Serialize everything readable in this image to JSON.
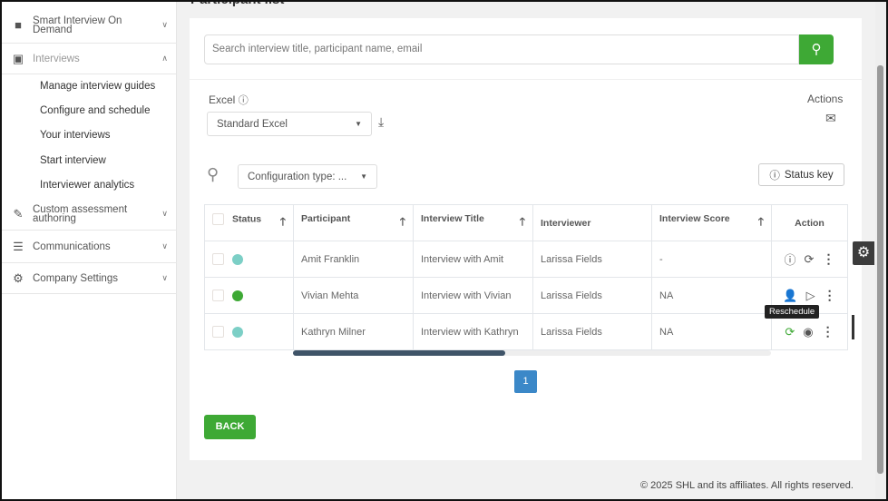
{
  "sidebar": {
    "items": [
      {
        "label": "Smart Interview On Demand",
        "icon": "video-camera-icon"
      },
      {
        "label": "Interviews",
        "icon": "interview-board-icon",
        "expanded": true
      },
      {
        "label": "Custom assessment authoring",
        "icon": "edit-icon"
      },
      {
        "label": "Communications",
        "icon": "list-icon"
      },
      {
        "label": "Company Settings",
        "icon": "gear-icon"
      }
    ],
    "subitems": [
      "Manage interview guides",
      "Configure and schedule",
      "Your interviews",
      "Start interview",
      "Interviewer analytics"
    ]
  },
  "page": {
    "title": "Participant list"
  },
  "search": {
    "placeholder": "Search interview title, participant name, email"
  },
  "excel": {
    "label": "Excel",
    "value": "Standard Excel"
  },
  "actions_label": "Actions",
  "filter": {
    "value": "Configuration type: ..."
  },
  "status_key": "Status key",
  "table": {
    "headers": [
      "Status",
      "Participant",
      "Interview Title",
      "Interviewer",
      "Interview Score",
      "Action"
    ],
    "rows": [
      {
        "status_color": "#7ccfc6",
        "participant": "Amit Franklin",
        "title": "Interview with Amit",
        "interviewer": "Larissa Fields",
        "score": "-"
      },
      {
        "status_color": "#3ea935",
        "participant": "Vivian Mehta",
        "title": "Interview with Vivian",
        "interviewer": "Larissa Fields",
        "score": "NA"
      },
      {
        "status_color": "#7ccfc6",
        "participant": "Kathryn Milner",
        "title": "Interview with Kathryn",
        "interviewer": "Larissa Fields",
        "score": "NA"
      }
    ]
  },
  "tooltip": "Reschedule",
  "pagination": {
    "current": "1"
  },
  "back": "BACK",
  "footer": "© 2025 SHL and its affiliates. All rights reserved.",
  "colors": {
    "accent": "#3ea935",
    "page": "#3b88c8"
  }
}
